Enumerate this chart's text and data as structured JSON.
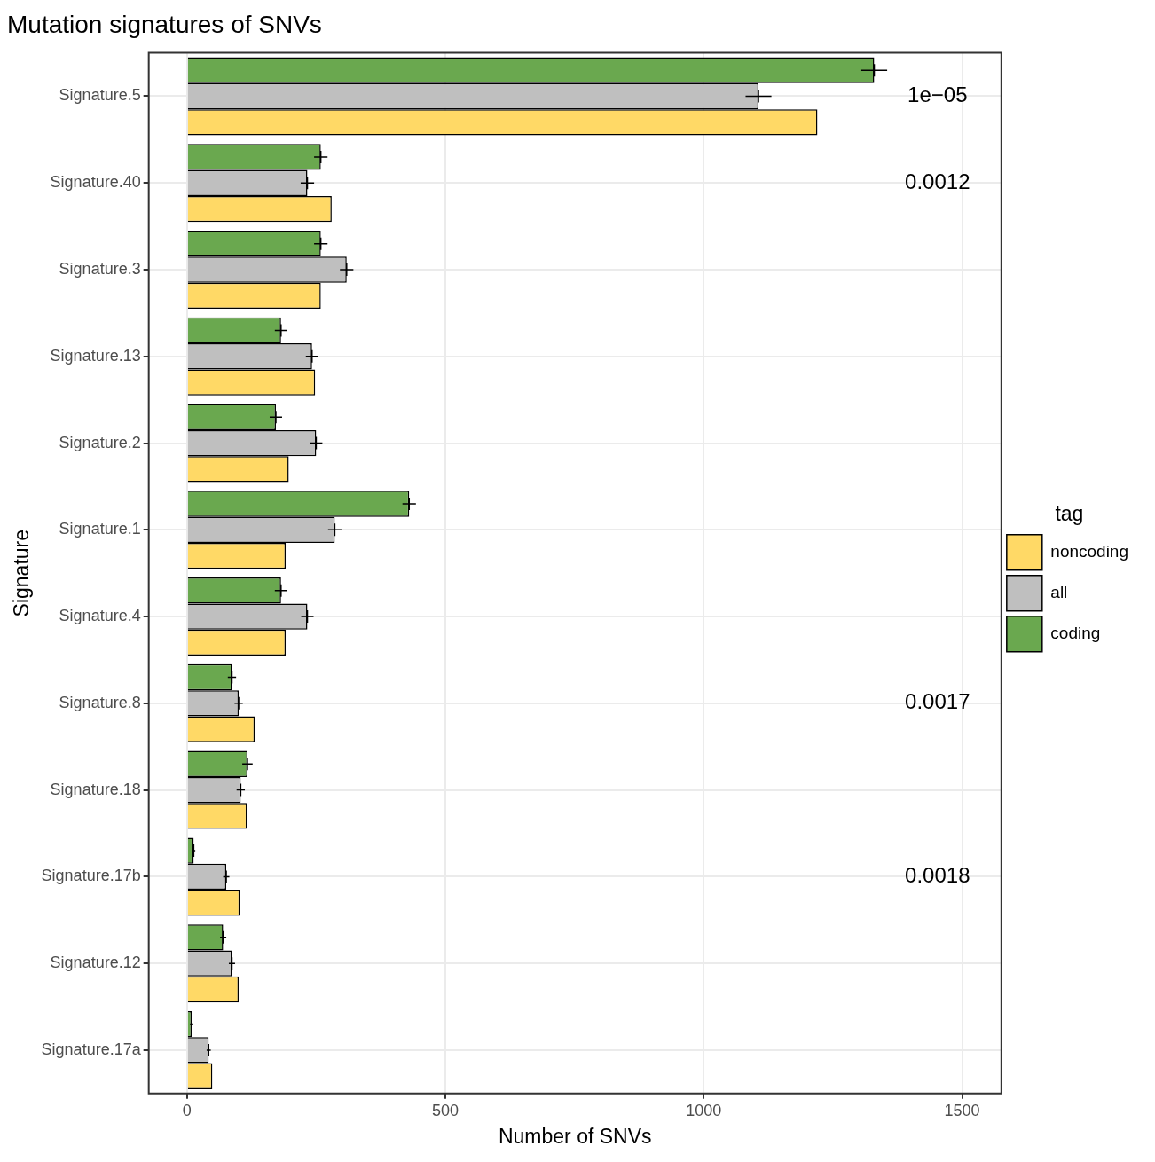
{
  "chart_data": {
    "type": "bar",
    "orientation": "horizontal",
    "title": "Mutation signatures of SNVs",
    "xlabel": "Number of SNVs",
    "ylabel": "Signature",
    "legend_title": "tag",
    "legend": "right",
    "grid": true,
    "categories": [
      "Signature.5",
      "Signature.40",
      "Signature.3",
      "Signature.13",
      "Signature.2",
      "Signature.1",
      "Signature.4",
      "Signature.8",
      "Signature.18",
      "Signature.17b",
      "Signature.12",
      "Signature.17a"
    ],
    "xlim": [
      -74,
      1576
    ],
    "xticks": [
      0,
      500,
      1000,
      1500
    ],
    "series": [
      {
        "name": "coding",
        "color": "#6aa84f",
        "values": [
          1330,
          259,
          259,
          182,
          172,
          430,
          182,
          87,
          117,
          13,
          70,
          9
        ],
        "errors": [
          25,
          13,
          13,
          12,
          12,
          13,
          12,
          8,
          10,
          3,
          6,
          3
        ]
      },
      {
        "name": "all",
        "color": "#bfbfbf",
        "values": [
          1106,
          233,
          309,
          242,
          250,
          286,
          233,
          100,
          104,
          76,
          87,
          42
        ],
        "errors": [
          25,
          13,
          13,
          12,
          12,
          13,
          12,
          8,
          8,
          6,
          6,
          4
        ]
      },
      {
        "name": "noncoding",
        "color": "#ffd966",
        "values": [
          1220,
          280,
          259,
          248,
          197,
          191,
          191,
          131,
          116,
          102,
          100,
          49
        ]
      }
    ],
    "annotations": [
      "1e−05",
      "0.0012",
      "0.0017",
      "0.0018"
    ]
  }
}
